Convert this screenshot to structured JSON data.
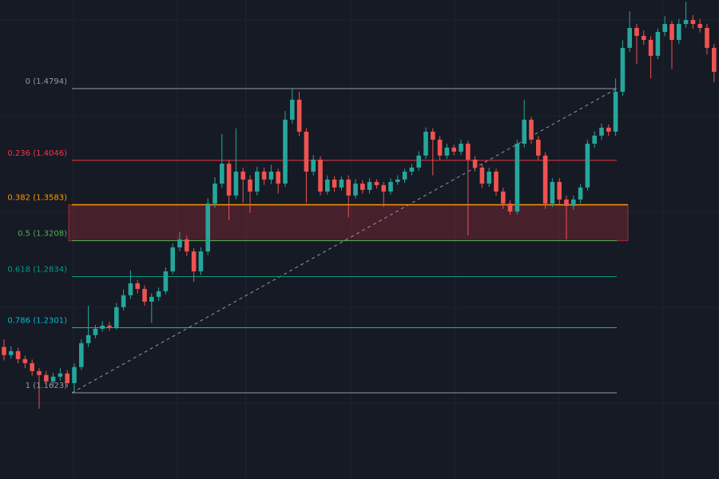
{
  "chart_data": {
    "type": "candlestick",
    "ylim": [
      1.0724,
      1.5718
    ],
    "up_color": "#26a69a",
    "down_color": "#ef5350",
    "open": [
      1.21,
      1.2016,
      1.2057,
      1.1974,
      1.1932,
      1.1849,
      1.1808,
      1.1741,
      1.1791,
      1.1824,
      1.1724,
      1.1891,
      1.214,
      1.2224,
      1.229,
      1.2323,
      1.2307,
      1.2515,
      1.264,
      1.2764,
      1.2706,
      1.2573,
      1.2623,
      1.2681,
      1.2889,
      1.3139,
      1.3222,
      1.3097,
      1.2889,
      1.3097,
      1.3596,
      1.3804,
      1.4012,
      1.368,
      1.3929,
      1.3846,
      1.3721,
      1.3929,
      1.3846,
      1.3929,
      1.3804,
      1.447,
      1.4678,
      1.4345,
      1.3929,
      1.4054,
      1.3721,
      1.3846,
      1.3763,
      1.3846,
      1.368,
      1.3804,
      1.3738,
      1.3821,
      1.3788,
      1.3721,
      1.3821,
      1.3846,
      1.3929,
      1.3971,
      1.4096,
      1.4345,
      1.4262,
      1.4096,
      1.4179,
      1.4137,
      1.422,
      1.4054,
      1.3971,
      1.3804,
      1.3929,
      1.3721,
      1.3596,
      1.3513,
      1.422,
      1.447,
      1.4262,
      1.4096,
      1.3596,
      1.3821,
      1.3638,
      1.3571,
      1.3638,
      1.3763,
      1.422,
      1.4304,
      1.4387,
      1.4345,
      1.4761,
      1.5219,
      1.5427,
      1.5344,
      1.5302,
      1.5136,
      1.5385,
      1.5468,
      1.5302,
      1.5468,
      1.551,
      1.5468,
      1.5427,
      1.5219
    ],
    "high": [
      1.218,
      1.211,
      1.209,
      1.201,
      1.197,
      1.188,
      1.185,
      1.183,
      1.188,
      1.186,
      1.193,
      1.218,
      1.253,
      1.233,
      1.237,
      1.236,
      1.256,
      1.27,
      1.29,
      1.28,
      1.274,
      1.266,
      1.272,
      1.293,
      1.318,
      1.33,
      1.326,
      1.313,
      1.314,
      1.365,
      1.387,
      1.432,
      1.405,
      1.438,
      1.397,
      1.389,
      1.398,
      1.397,
      1.4,
      1.396,
      1.456,
      1.4794,
      1.4761,
      1.438,
      1.41,
      1.409,
      1.389,
      1.388,
      1.388,
      1.389,
      1.385,
      1.384,
      1.386,
      1.385,
      1.382,
      1.386,
      1.389,
      1.396,
      1.401,
      1.414,
      1.439,
      1.438,
      1.43,
      1.422,
      1.421,
      1.426,
      1.425,
      1.409,
      1.401,
      1.397,
      1.396,
      1.376,
      1.363,
      1.426,
      1.4678,
      1.45,
      1.43,
      1.413,
      1.386,
      1.386,
      1.368,
      1.368,
      1.38,
      1.426,
      1.435,
      1.443,
      1.442,
      1.49,
      1.53,
      1.56,
      1.547,
      1.54,
      1.534,
      1.542,
      1.555,
      1.55,
      1.552,
      1.57,
      1.556,
      1.552,
      1.547,
      1.526
    ],
    "low": [
      1.196,
      1.198,
      1.193,
      1.188,
      1.18,
      1.1458,
      1.17,
      1.169,
      1.175,
      1.168,
      1.1623,
      1.186,
      1.21,
      1.219,
      1.226,
      1.227,
      1.228,
      1.248,
      1.26,
      1.266,
      1.253,
      1.235,
      1.258,
      1.265,
      1.286,
      1.31,
      1.305,
      1.278,
      1.285,
      1.306,
      1.355,
      1.376,
      1.342,
      1.364,
      1.36,
      1.35,
      1.368,
      1.379,
      1.38,
      1.37,
      1.377,
      1.443,
      1.43,
      1.36,
      1.389,
      1.368,
      1.369,
      1.372,
      1.373,
      1.345,
      1.365,
      1.37,
      1.37,
      1.375,
      1.356,
      1.369,
      1.379,
      1.381,
      1.389,
      1.394,
      1.406,
      1.389,
      1.405,
      1.406,
      1.41,
      1.41,
      1.3264,
      1.393,
      1.376,
      1.377,
      1.368,
      1.354,
      1.348,
      1.348,
      1.418,
      1.422,
      1.405,
      1.354,
      1.356,
      1.359,
      1.3222,
      1.353,
      1.36,
      1.373,
      1.418,
      1.426,
      1.43,
      1.43,
      1.472,
      1.518,
      1.505,
      1.525,
      1.49,
      1.51,
      1.534,
      1.5,
      1.526,
      1.543,
      1.542,
      1.538,
      1.515,
      1.486
    ],
    "close": [
      1.2016,
      1.2057,
      1.1974,
      1.1932,
      1.1849,
      1.1808,
      1.1741,
      1.1791,
      1.1824,
      1.1724,
      1.1891,
      1.214,
      1.2224,
      1.229,
      1.2323,
      1.2307,
      1.2515,
      1.264,
      1.2764,
      1.2706,
      1.2573,
      1.2623,
      1.2681,
      1.2889,
      1.3139,
      1.3222,
      1.3097,
      1.2889,
      1.3097,
      1.3596,
      1.3804,
      1.4012,
      1.368,
      1.3929,
      1.3846,
      1.3721,
      1.3929,
      1.3846,
      1.3929,
      1.3804,
      1.447,
      1.4678,
      1.4345,
      1.3929,
      1.4054,
      1.3721,
      1.3846,
      1.3763,
      1.3846,
      1.368,
      1.3804,
      1.3738,
      1.3821,
      1.3788,
      1.3721,
      1.3821,
      1.3846,
      1.3929,
      1.3971,
      1.4096,
      1.4345,
      1.4262,
      1.4096,
      1.4179,
      1.4137,
      1.422,
      1.4054,
      1.3971,
      1.3804,
      1.3929,
      1.3721,
      1.3596,
      1.3513,
      1.422,
      1.447,
      1.4262,
      1.4096,
      1.3596,
      1.3821,
      1.3638,
      1.3571,
      1.3638,
      1.3763,
      1.422,
      1.4304,
      1.4387,
      1.4345,
      1.4761,
      1.5219,
      1.5427,
      1.5344,
      1.5302,
      1.5136,
      1.5385,
      1.5468,
      1.5302,
      1.5468,
      1.551,
      1.5468,
      1.5427,
      1.5219,
      1.4969
    ],
    "fib_levels": [
      {
        "label": "0 (1.4794)",
        "value": 1.4794,
        "color": "#9598a1"
      },
      {
        "label": "0.236 (1.4046)",
        "value": 1.4046,
        "color": "#f23645"
      },
      {
        "label": "0.382 (1.3583)",
        "value": 1.3583,
        "color": "#ff9800"
      },
      {
        "label": "0.5 (1.3208)",
        "value": 1.3208,
        "color": "#4caf50"
      },
      {
        "label": "0.618 (1.2834)",
        "value": 1.2834,
        "color": "#089981"
      },
      {
        "label": "0.786 (1.2301)",
        "value": 1.2301,
        "color": "#00bcd4"
      },
      {
        "label": "1 (1.1623)",
        "value": 1.1623,
        "color": "#9598a1"
      }
    ],
    "zone_color": "#f23645"
  }
}
